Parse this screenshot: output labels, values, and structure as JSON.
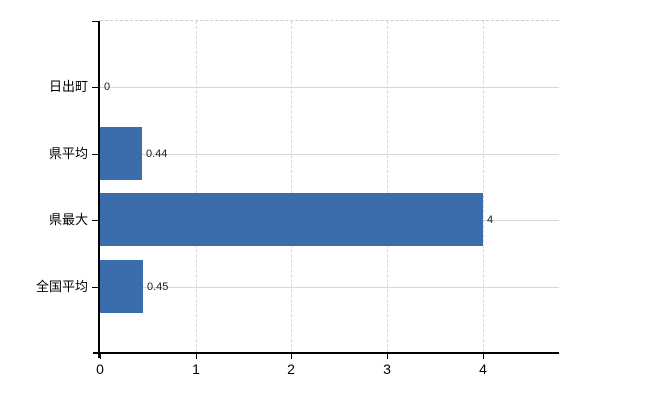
{
  "chart_data": {
    "type": "bar",
    "orientation": "horizontal",
    "title": "",
    "xlabel": "",
    "ylabel": "",
    "categories": [
      "日出町",
      "県平均",
      "県最大",
      "全国平均"
    ],
    "values": [
      0,
      0.44,
      4,
      0.45
    ],
    "value_labels": [
      "0",
      "0.44",
      "4",
      "0.45"
    ],
    "x_ticks": [
      0,
      1,
      2,
      3,
      4
    ],
    "x_tick_labels": [
      "0",
      "1",
      "2",
      "3",
      "4"
    ],
    "xlim": [
      0,
      4.8
    ],
    "grid": true,
    "legend": false,
    "colors": {
      "bar": "#3b6cab",
      "h_gridline": "#d6dbd2",
      "v_gridline": "#d9d9d9",
      "top_border": "#cccccc",
      "axis": "#000000",
      "value_label": "#1a1a1a",
      "tick_label": "#000000",
      "background": "#ffffff"
    }
  }
}
